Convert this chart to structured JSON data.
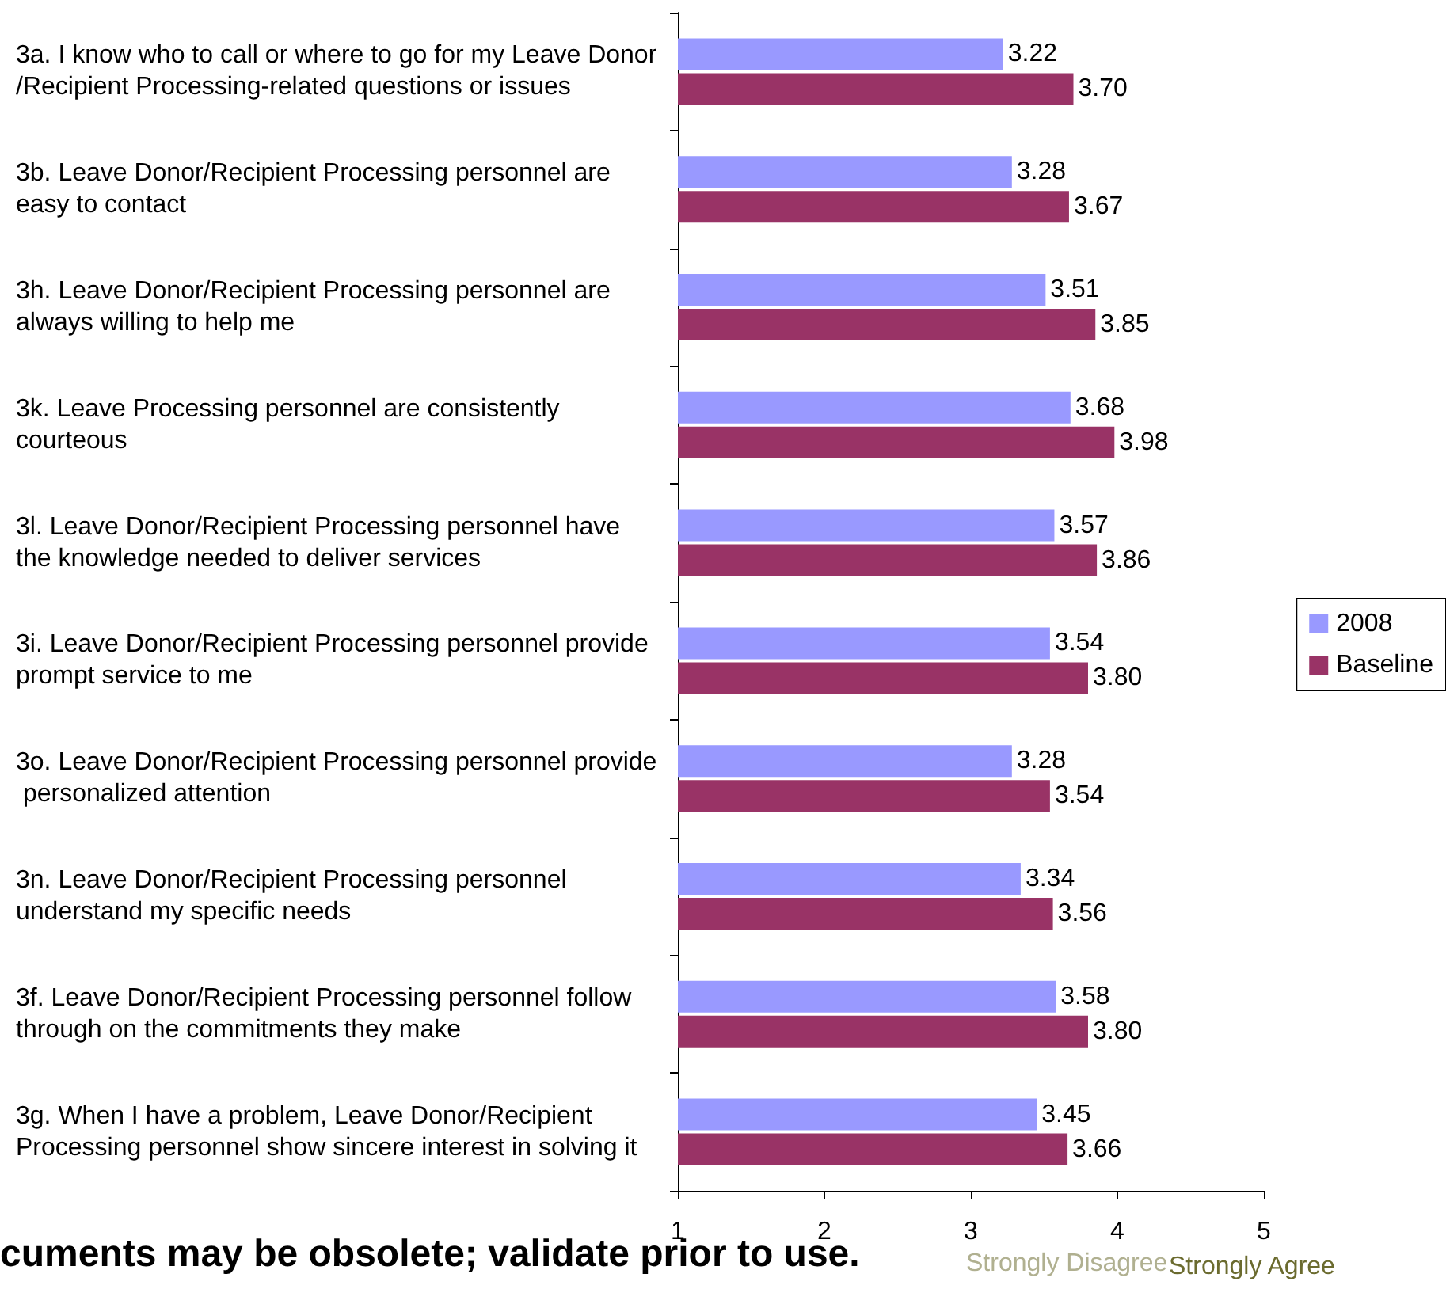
{
  "chart_data": {
    "type": "bar",
    "orientation": "horizontal",
    "categories": [
      "3a. I know who to call or where to go for my Leave Donor/Recipient Processing-related questions or issues",
      "3b. Leave Donor/Recipient Processing personnel are easy to contact",
      "3h. Leave Donor/Recipient Processing personnel are always willing to help me",
      "3k. Leave Processing personnel are consistently courteous",
      "3l. Leave Donor/Recipient Processing personnel have the knowledge needed to deliver services",
      "3i. Leave Donor/Recipient Processing personnel provide prompt service to me",
      "3o. Leave Donor/Recipient Processing personnel provide personalized attention",
      "3n. Leave Donor/Recipient Processing personnel understand my specific needs",
      "3f. Leave Donor/Recipient Processing personnel follow through on the commitments they make",
      "3g. When I have a problem, Leave Donor/Recipient Processing personnel show sincere interest in solving it"
    ],
    "series": [
      {
        "name": "2008",
        "color": "#9999ff",
        "values": [
          3.22,
          3.28,
          3.51,
          3.68,
          3.57,
          3.54,
          3.28,
          3.34,
          3.58,
          3.45
        ],
        "value_labels": [
          "3.22",
          "3.28",
          "3.51",
          "3.68",
          "3.57",
          "3.54",
          "3.28",
          "3.34",
          "3.58",
          "3.45"
        ]
      },
      {
        "name": "Baseline",
        "color": "#993366",
        "values": [
          3.7,
          3.67,
          3.85,
          3.98,
          3.86,
          3.8,
          3.54,
          3.56,
          3.8,
          3.66
        ],
        "value_labels": [
          "3.70",
          "3.67",
          "3.85",
          "3.98",
          "3.86",
          "3.80",
          "3.54",
          "3.56",
          "3.80",
          "3.66"
        ]
      }
    ],
    "xlim": [
      1,
      5
    ],
    "xticks": [
      1,
      2,
      3,
      4,
      5
    ],
    "grid": false,
    "legend": "right",
    "annotations": [
      "Strongly Disagree",
      "Strongly Agree",
      "cuments may be obsolete; validate prior to use."
    ]
  }
}
